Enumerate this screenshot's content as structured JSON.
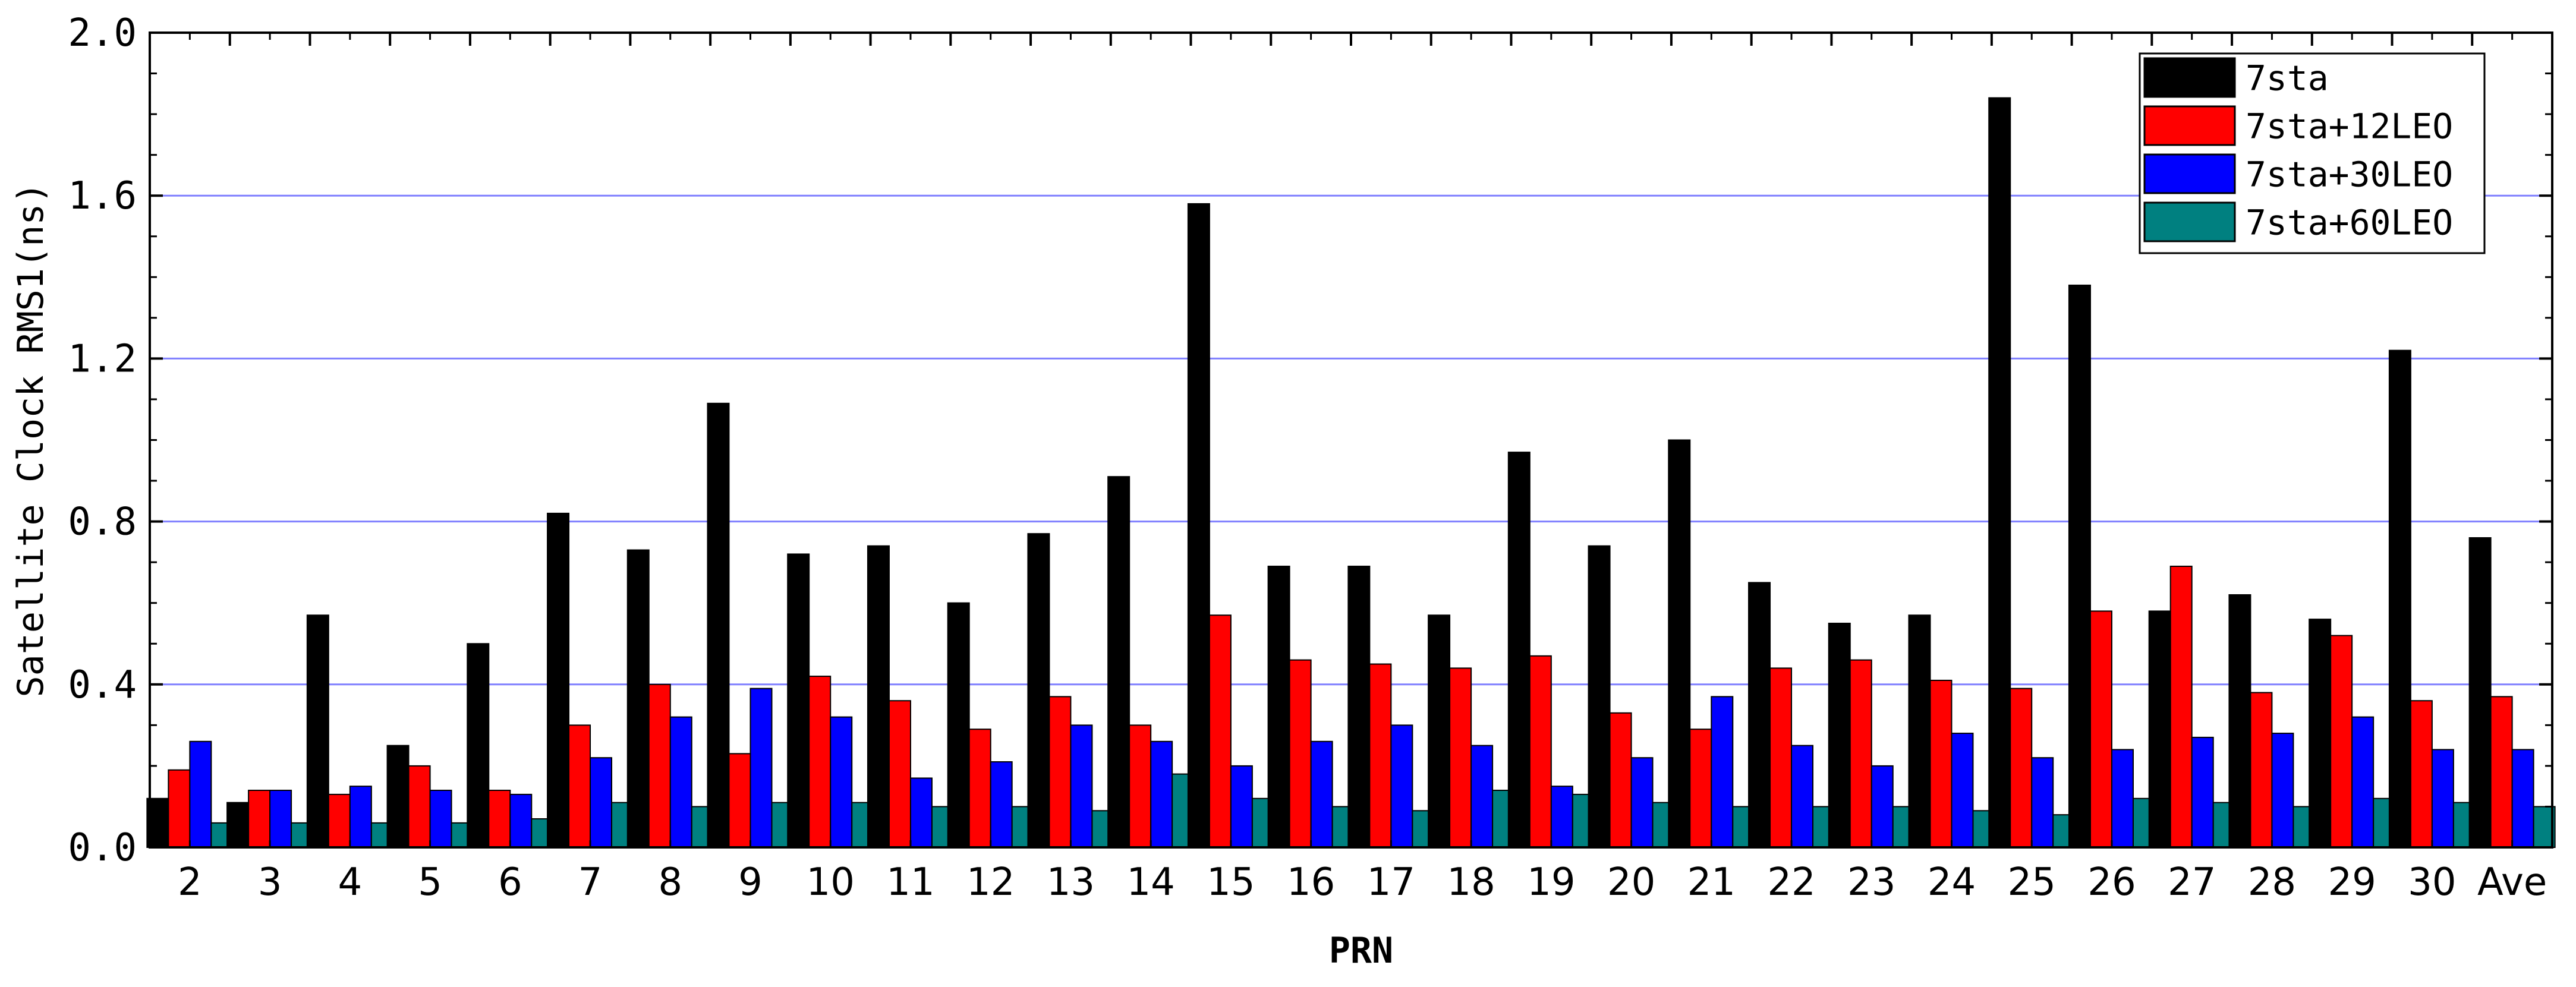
{
  "chart_data": {
    "type": "bar",
    "title": "",
    "xlabel": "PRN",
    "ylabel": "Satellite Clock RMS1(ns)",
    "ylim": [
      0,
      2.0
    ],
    "yticks": [
      "0.0",
      "0.4",
      "0.8",
      "1.2",
      "1.6",
      "2.0"
    ],
    "grid": "horizontal",
    "legend_position": "top-right",
    "categories": [
      "2",
      "3",
      "4",
      "5",
      "6",
      "7",
      "8",
      "9",
      "10",
      "11",
      "12",
      "13",
      "14",
      "15",
      "16",
      "17",
      "18",
      "19",
      "20",
      "21",
      "22",
      "23",
      "24",
      "25",
      "26",
      "27",
      "28",
      "29",
      "30",
      "Ave"
    ],
    "series": [
      {
        "name": "7sta",
        "color": "#000000",
        "values": [
          0.12,
          0.11,
          0.57,
          0.25,
          0.5,
          0.82,
          0.73,
          1.09,
          0.72,
          0.74,
          0.6,
          0.77,
          0.91,
          1.58,
          0.69,
          0.69,
          0.57,
          0.97,
          0.74,
          1.0,
          0.65,
          0.55,
          0.57,
          1.84,
          1.38,
          0.58,
          0.62,
          0.56,
          1.22,
          0.76
        ]
      },
      {
        "name": "7sta+12LEO",
        "color": "#ff0000",
        "values": [
          0.19,
          0.14,
          0.13,
          0.2,
          0.14,
          0.3,
          0.4,
          0.23,
          0.42,
          0.36,
          0.29,
          0.37,
          0.3,
          0.57,
          0.46,
          0.45,
          0.44,
          0.47,
          0.33,
          0.29,
          0.44,
          0.46,
          0.41,
          0.39,
          0.58,
          0.69,
          0.38,
          0.52,
          0.36,
          0.37
        ]
      },
      {
        "name": "7sta+30LEO",
        "color": "#0000ff",
        "values": [
          0.26,
          0.14,
          0.15,
          0.14,
          0.13,
          0.22,
          0.32,
          0.39,
          0.32,
          0.17,
          0.21,
          0.3,
          0.26,
          0.2,
          0.26,
          0.3,
          0.25,
          0.15,
          0.22,
          0.37,
          0.25,
          0.2,
          0.28,
          0.22,
          0.24,
          0.27,
          0.28,
          0.32,
          0.24,
          0.24
        ]
      },
      {
        "name": "7sta+60LEO",
        "color": "#008080",
        "values": [
          0.06,
          0.06,
          0.06,
          0.06,
          0.07,
          0.11,
          0.1,
          0.11,
          0.11,
          0.1,
          0.1,
          0.09,
          0.18,
          0.12,
          0.1,
          0.09,
          0.14,
          0.13,
          0.11,
          0.1,
          0.1,
          0.1,
          0.09,
          0.08,
          0.12,
          0.11,
          0.1,
          0.12,
          0.11,
          0.1
        ]
      }
    ]
  }
}
